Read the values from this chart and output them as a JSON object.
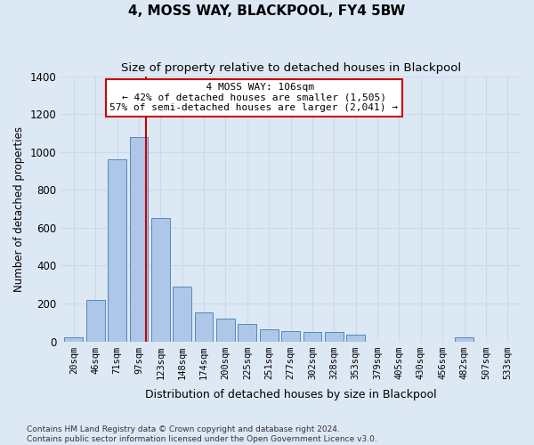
{
  "title": "4, MOSS WAY, BLACKPOOL, FY4 5BW",
  "subtitle": "Size of property relative to detached houses in Blackpool",
  "xlabel": "Distribution of detached houses by size in Blackpool",
  "ylabel": "Number of detached properties",
  "categories": [
    "20sqm",
    "46sqm",
    "71sqm",
    "97sqm",
    "123sqm",
    "148sqm",
    "174sqm",
    "200sqm",
    "225sqm",
    "251sqm",
    "277sqm",
    "302sqm",
    "328sqm",
    "353sqm",
    "379sqm",
    "405sqm",
    "430sqm",
    "456sqm",
    "482sqm",
    "507sqm",
    "533sqm"
  ],
  "values": [
    20,
    220,
    960,
    1080,
    650,
    290,
    155,
    120,
    90,
    65,
    55,
    50,
    50,
    35,
    0,
    0,
    0,
    0,
    20,
    0,
    0
  ],
  "bar_color": "#aec6e8",
  "bar_edge_color": "#5588bb",
  "marker_value": 106,
  "marker_label": "4 MOSS WAY: 106sqm",
  "smaller_pct": 42,
  "smaller_n": "1,505",
  "larger_pct": 57,
  "larger_n": "2,041",
  "ylim": [
    0,
    1400
  ],
  "yticks": [
    0,
    200,
    400,
    600,
    800,
    1000,
    1200,
    1400
  ],
  "annotation_box_color": "#ffffff",
  "annotation_box_edge": "#cc0000",
  "vline_color": "#cc0000",
  "grid_color": "#ccd9e8",
  "bg_color": "#dde8f5",
  "footnote": "Contains HM Land Registry data © Crown copyright and database right 2024.\nContains public sector information licensed under the Open Government Licence v3.0."
}
